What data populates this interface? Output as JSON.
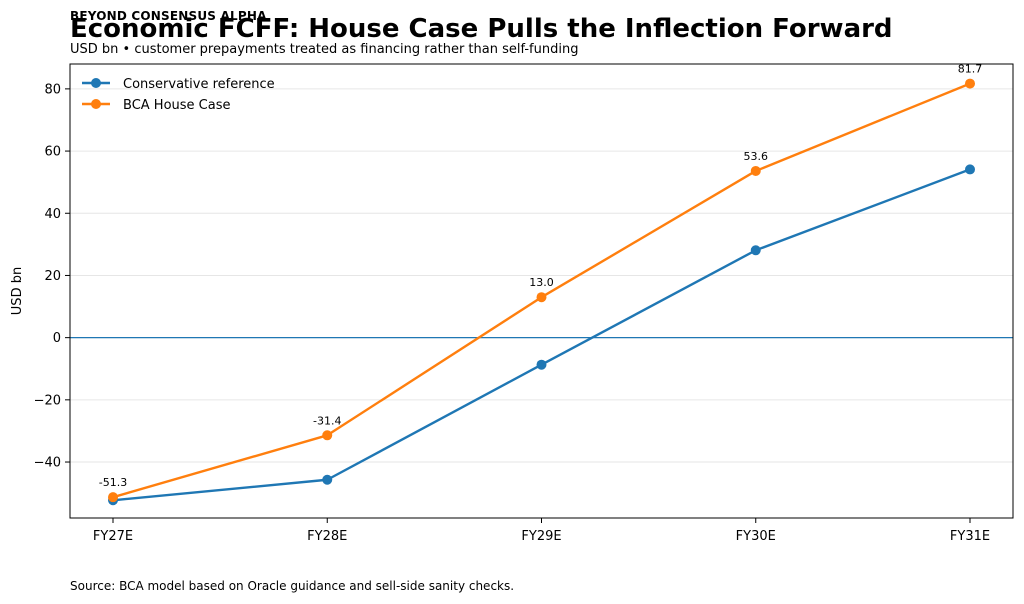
{
  "header": {
    "brand": "BEYOND CONSENSUS ALPHA",
    "title": "Economic FCFF: House Case Pulls the Inflection Forward",
    "subtitle": "USD bn • customer prepayments treated as financing rather than self-funding"
  },
  "footer": {
    "source": "Source: BCA model based on Oracle guidance and sell-side sanity checks."
  },
  "chart_data": {
    "type": "line",
    "title": "Economic FCFF: House Case Pulls the Inflection Forward",
    "subtitle": "USD bn • customer prepayments treated as financing rather than self-funding",
    "xlabel": "",
    "ylabel": "USD bn",
    "categories": [
      "FY27E",
      "FY28E",
      "FY29E",
      "FY30E",
      "FY31E"
    ],
    "yticks": [
      -40,
      -20,
      0,
      20,
      40,
      60,
      80
    ],
    "ytick_labels": [
      "−40",
      "−20",
      "0",
      "20",
      "40",
      "60",
      "80"
    ],
    "ylim": [
      -58,
      88
    ],
    "grid": "horizontal",
    "zero_line": true,
    "legend_position": "top-left",
    "series": [
      {
        "name": "Conservative reference",
        "color": "#1f77b4",
        "values": [
          -52.3,
          -45.7,
          -8.7,
          28.1,
          54.1
        ],
        "data_labels": null
      },
      {
        "name": "BCA House Case",
        "color": "#ff7f0e",
        "values": [
          -51.3,
          -31.4,
          13.0,
          53.6,
          81.7
        ],
        "data_labels": [
          "-51.3",
          "-31.4",
          "13.0",
          "53.6",
          "81.7"
        ]
      }
    ]
  }
}
